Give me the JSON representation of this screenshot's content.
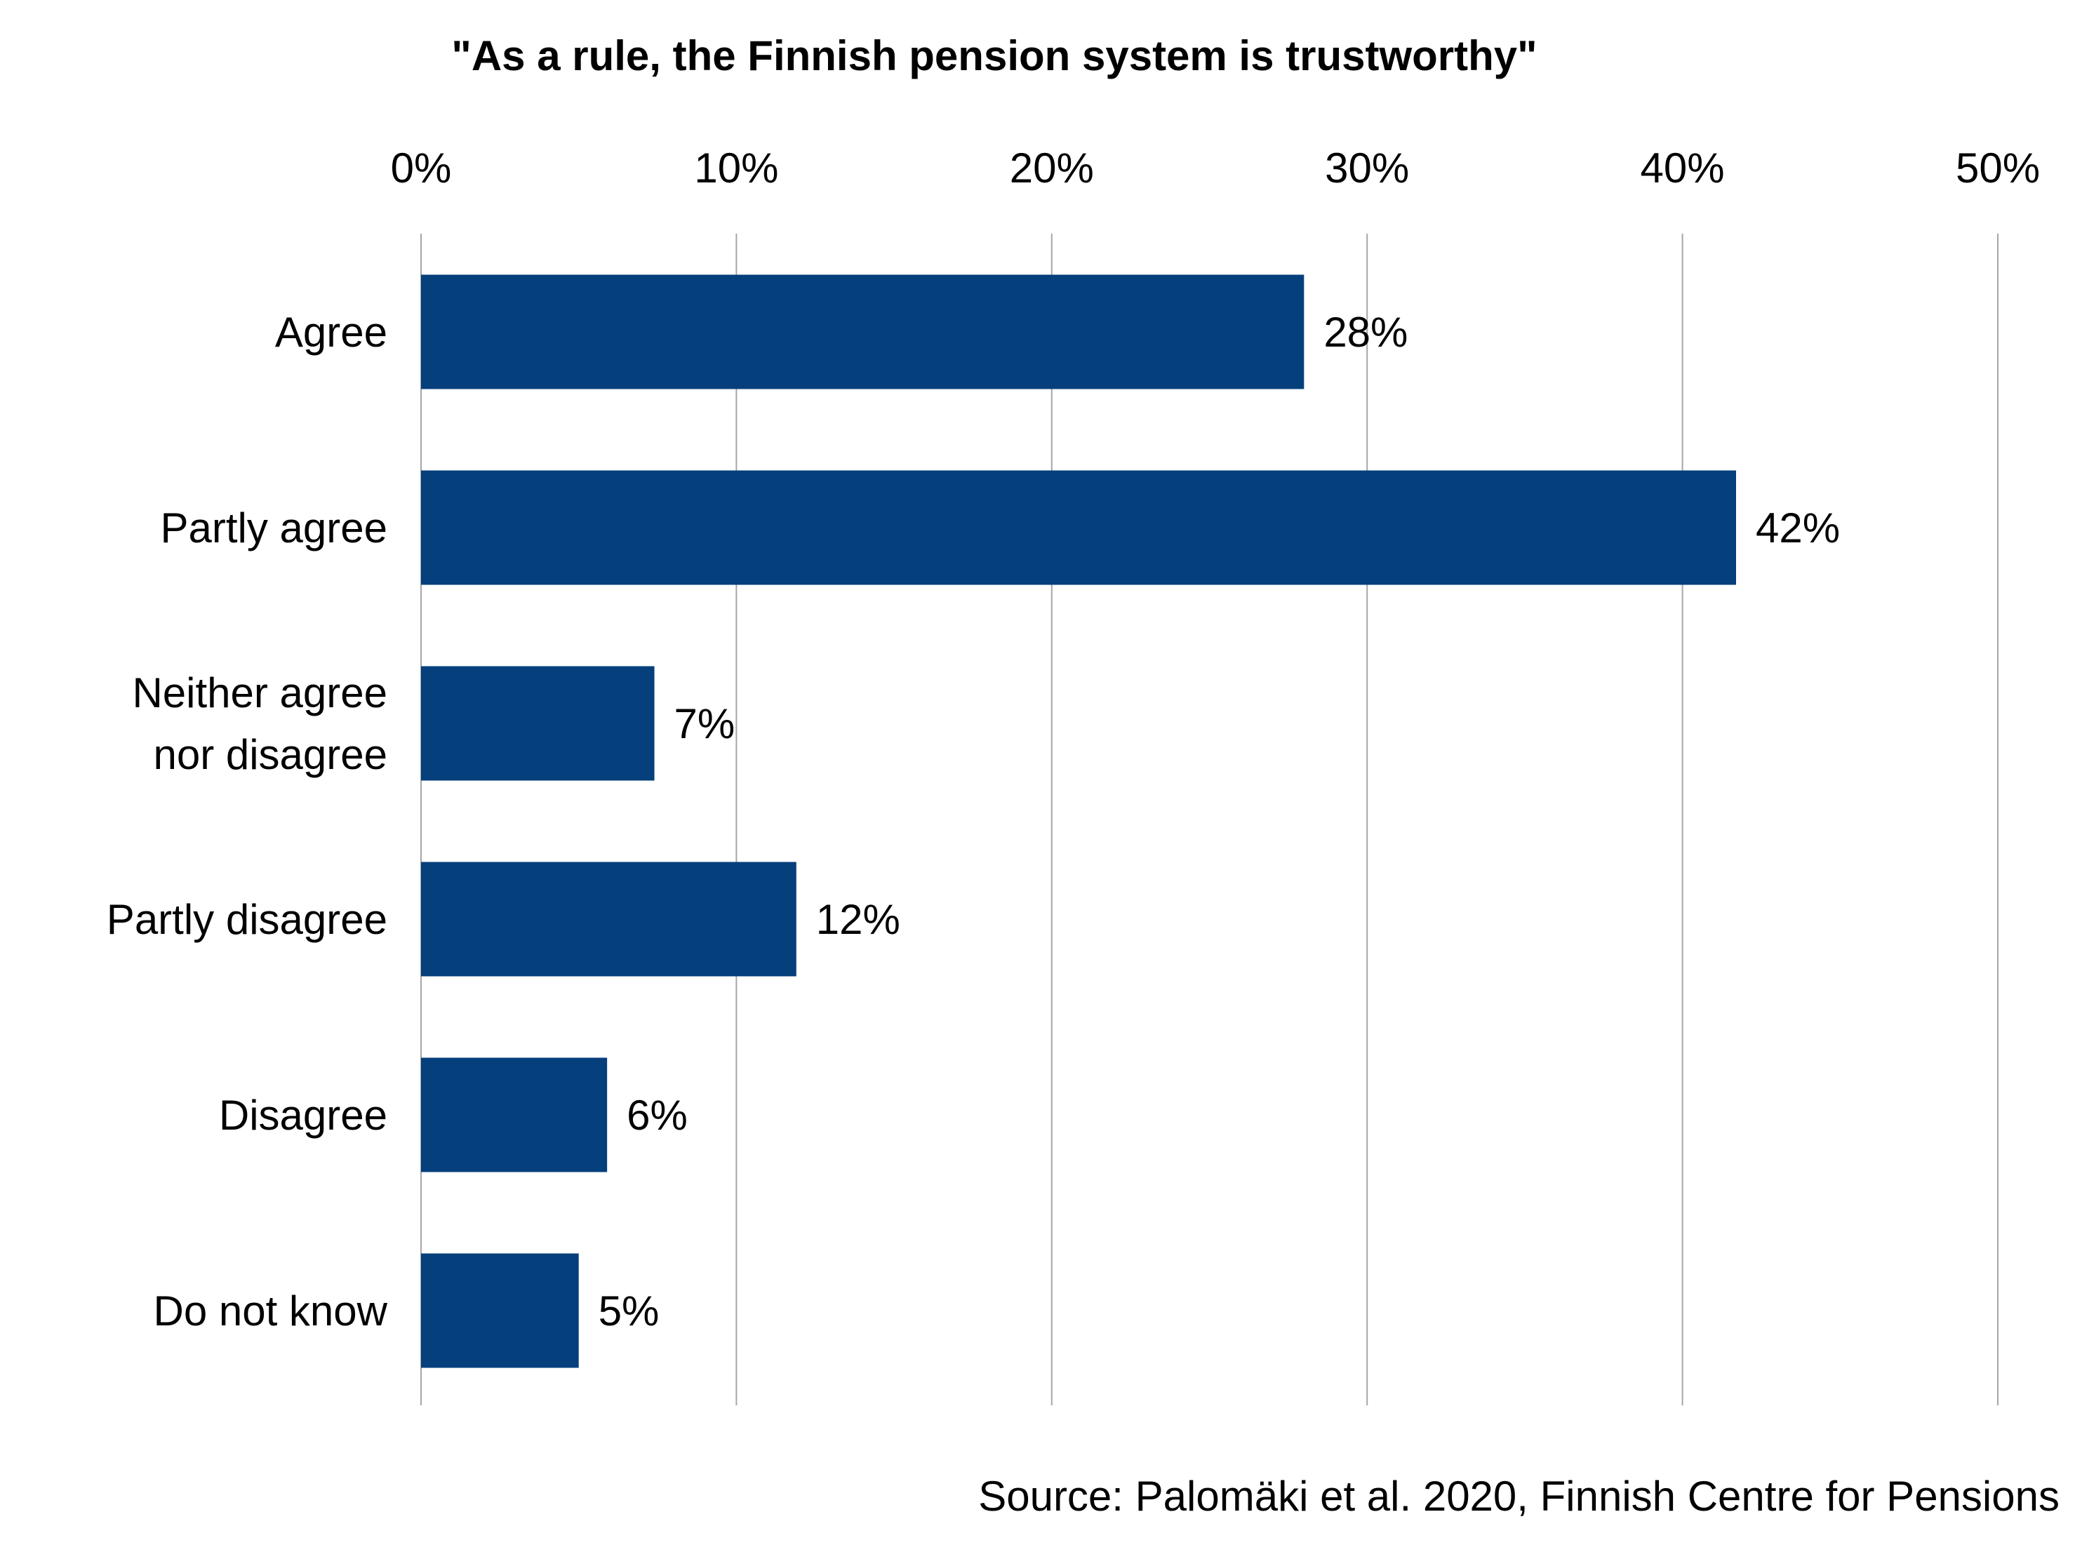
{
  "chart_data": {
    "type": "bar",
    "orientation": "horizontal",
    "title": "\"As a rule, the Finnish pension system is trustworthy\"",
    "categories": [
      "Agree",
      "Partly agree",
      "Neither agree nor disagree",
      "Partly disagree",
      "Disagree",
      "Do not know"
    ],
    "category_lines": [
      [
        "Agree"
      ],
      [
        "Partly agree"
      ],
      [
        "Neither agree",
        "nor disagree"
      ],
      [
        "Partly disagree"
      ],
      [
        "Disagree"
      ],
      [
        "Do not know"
      ]
    ],
    "values": [
      28,
      41.7,
      7.4,
      11.9,
      5.9,
      5
    ],
    "data_labels": [
      "28%",
      "42%",
      "7%",
      "12%",
      "6%",
      "5%"
    ],
    "xlim": [
      0,
      50
    ],
    "xticks": [
      0,
      10,
      20,
      30,
      40,
      50
    ],
    "xtick_labels": [
      "0%",
      "10%",
      "20%",
      "30%",
      "40%",
      "50%"
    ],
    "x_axis_position": "top",
    "grid": "vertical",
    "legend": "none",
    "bar_color": "#053f7c",
    "grid_color": "#a6a6a6"
  },
  "source": "Source: Palomäki et al. 2020, Finnish Centre for Pensions"
}
